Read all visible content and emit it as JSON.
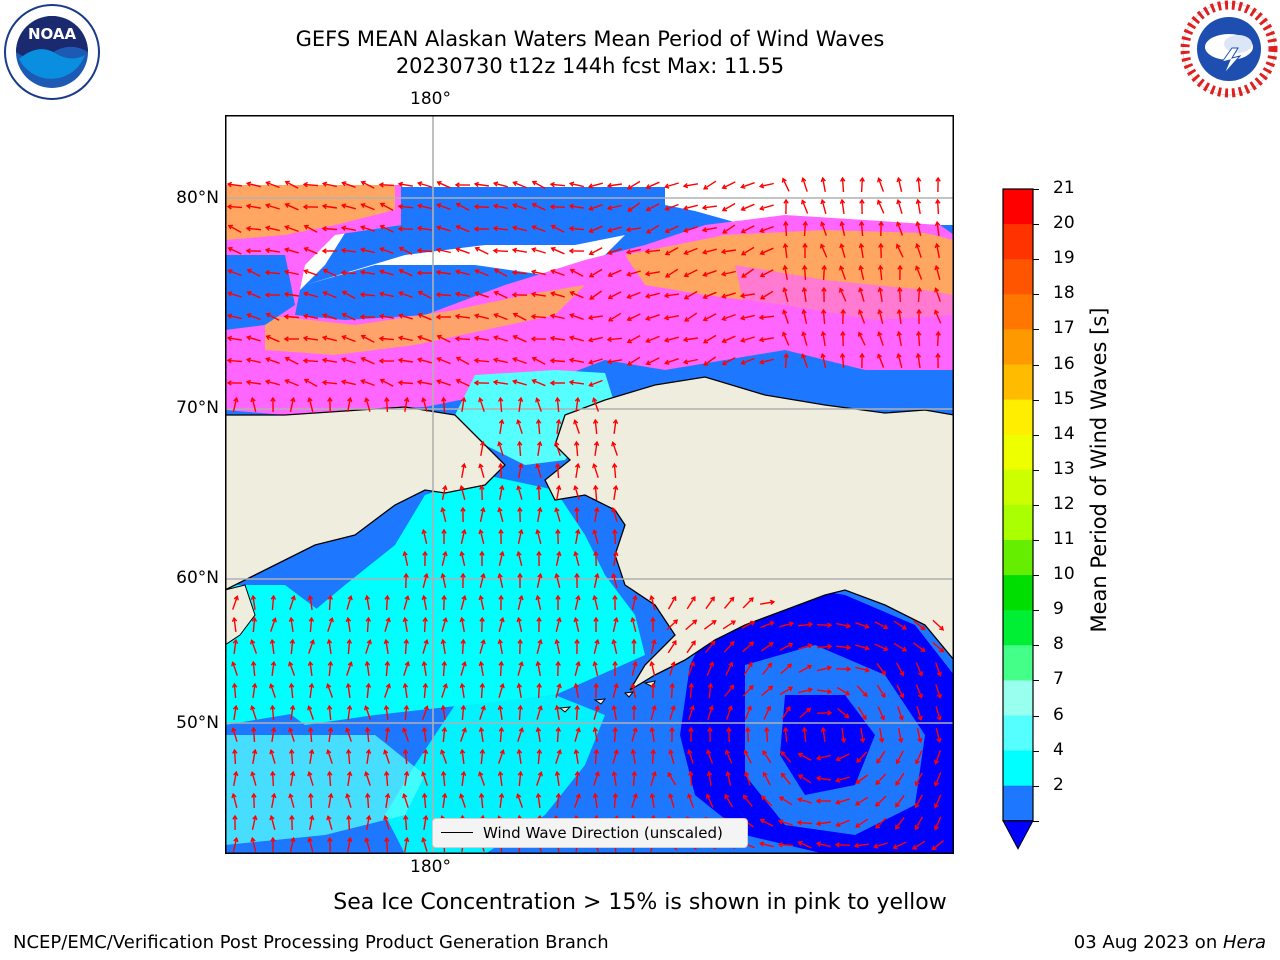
{
  "header": {
    "title_line1": "GEFS MEAN Alaskan Waters Mean Period of Wind Waves",
    "title_line2": "20230730 t12z 144h fcst   Max: 11.55"
  },
  "logos": {
    "noaa_text": "NOAA",
    "noaa_ring": "NATIONAL OCEANIC AND ATMOSPHERIC ADMINISTRATION · U.S. DEPARTMENT OF COMMERCE",
    "nws_ring": "NATIONAL WEATHER SERVICE"
  },
  "map": {
    "lon_label_top": "180°",
    "lon_label_bottom": "180°",
    "lat_labels": [
      "80°N",
      "70°N",
      "60°N",
      "50°N"
    ],
    "legend_label": "Wind Wave Direction (unscaled)",
    "colors": {
      "land": "#efedde",
      "arrow": "#ff0000",
      "gridline": "#b0b0b0",
      "ice_pink": "#ff66ff",
      "ice_orange": "#ffb347",
      "deep_blue": "#0000ff",
      "mid_blue": "#1e78ff",
      "cyan": "#00ffff"
    }
  },
  "colorbar": {
    "label": "Mean Period of Wind Waves [s]",
    "ticks": [
      "21",
      "20",
      "19",
      "18",
      "17",
      "16",
      "15",
      "14",
      "13",
      "12",
      "11",
      "10",
      "9",
      "8",
      "7",
      "6",
      "4",
      "2"
    ],
    "segment_colors": [
      "#ff0000",
      "#ff3300",
      "#ff5500",
      "#ff7700",
      "#ff9900",
      "#ffbb00",
      "#ffee00",
      "#eeff00",
      "#ccff00",
      "#aaff00",
      "#66ee00",
      "#00dd00",
      "#00ee33",
      "#44ff88",
      "#99ffee",
      "#55ffff",
      "#00ffff",
      "#1e78ff"
    ],
    "extend_color": "#0000ff"
  },
  "caption": "Sea Ice Concentration > 15% is shown in pink to yellow",
  "footer": {
    "left": "NCEP/EMC/Verification Post Processing Product Generation Branch",
    "right_date": "03 Aug 2023 on ",
    "right_host": "Hera"
  }
}
